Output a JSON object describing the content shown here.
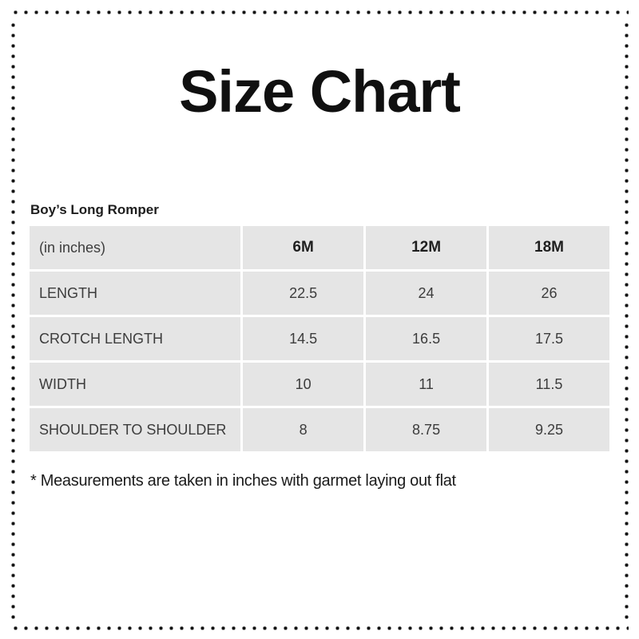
{
  "page": {
    "title": "Size Chart",
    "product_name": "Boy’s Long Romper",
    "footnote": "* Measurements are taken in inches with garmet laying out flat"
  },
  "size_table": {
    "unit_label": "(in inches)",
    "columns": [
      "6M",
      "12M",
      "18M"
    ],
    "rows": [
      {
        "label": "LENGTH",
        "values": [
          "22.5",
          "24",
          "26"
        ]
      },
      {
        "label": "CROTCH LENGTH",
        "values": [
          "14.5",
          "16.5",
          "17.5"
        ]
      },
      {
        "label": "WIDTH",
        "values": [
          "10",
          "11",
          "11.5"
        ]
      },
      {
        "label": "SHOULDER TO SHOULDER",
        "values": [
          "8",
          "8.75",
          "9.25"
        ]
      }
    ]
  },
  "colors": {
    "cell_background": "#e5e5e5",
    "border_dot": "#131313",
    "table_text": "#3c3c3c",
    "heading_text": "#101010"
  }
}
